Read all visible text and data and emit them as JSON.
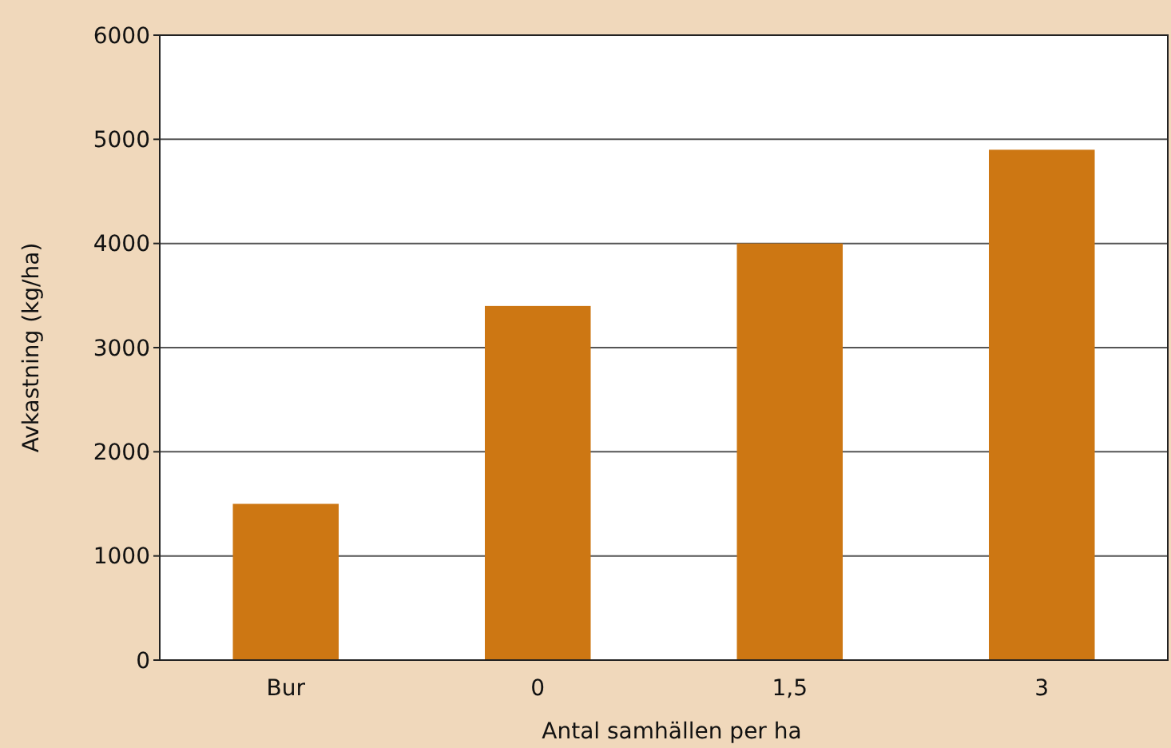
{
  "chart_data": {
    "type": "bar",
    "xlabel": "Antal samhällen per ha",
    "ylabel": "Avkastning (kg/ha)",
    "categories": [
      "Bur",
      "0",
      "1,5",
      "3"
    ],
    "values": [
      1500,
      3400,
      4000,
      4900
    ],
    "color": "#cd7713",
    "ylim": [
      0,
      6000
    ],
    "yticks": [
      0,
      1000,
      2000,
      3000,
      4000,
      5000,
      6000
    ],
    "grid": "y"
  }
}
